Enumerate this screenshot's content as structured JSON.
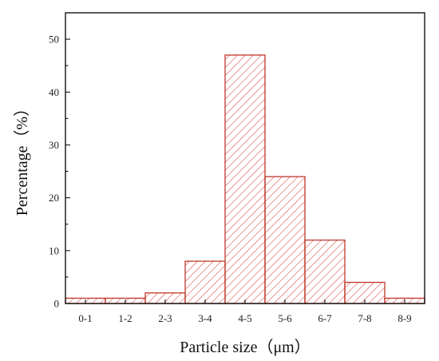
{
  "chart_data": {
    "type": "bar",
    "title": "",
    "xlabel": "Particle size（μm）",
    "ylabel": "Percentage（%）",
    "categories": [
      "0-1",
      "1-2",
      "2-3",
      "3-4",
      "4-5",
      "5-6",
      "6-7",
      "7-8",
      "8-9"
    ],
    "values": [
      1,
      1,
      2,
      8,
      47,
      24,
      12,
      4,
      1
    ],
    "ylim": [
      0,
      55
    ],
    "yticks": [
      0,
      10,
      20,
      30,
      40,
      50
    ],
    "grid": false,
    "legend": "none",
    "bar_fill": "hatched",
    "colors": {
      "bar_stroke": "#c0392b",
      "hatch": "#d9534f",
      "axis": "#000000"
    }
  }
}
